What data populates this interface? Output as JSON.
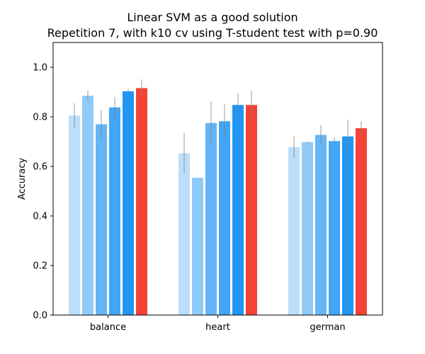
{
  "chart_data": {
    "type": "bar",
    "title": "Linear SVM as a good solution",
    "subtitle": "Repetition 7, with k10 cv using T-student test with p=0.90",
    "xlabel": "",
    "ylabel": "Accuracy",
    "ylim": [
      0,
      1.1
    ],
    "yticks": [
      "0.0",
      "0.2",
      "0.4",
      "0.6",
      "0.8",
      "1.0"
    ],
    "categories": [
      "balance",
      "heart",
      "german"
    ],
    "grid": false,
    "legend": "none",
    "colors": [
      "#bbdefb",
      "#90caf9",
      "#64b5f6",
      "#42a5f5",
      "#2196f3",
      "#f44336"
    ],
    "error_bar_color": "#7f7f7f",
    "series": [
      {
        "values": [
          0.805,
          0.653,
          0.678
        ],
        "errors": [
          0.05,
          0.082,
          0.043
        ]
      },
      {
        "values": [
          0.885,
          0.554,
          0.698
        ],
        "errors": [
          0.022,
          0.0,
          0.003
        ]
      },
      {
        "values": [
          0.77,
          0.775,
          0.727
        ],
        "errors": [
          0.058,
          0.087,
          0.04
        ]
      },
      {
        "values": [
          0.838,
          0.782,
          0.702
        ],
        "errors": [
          0.042,
          0.068,
          0.015
        ]
      },
      {
        "values": [
          0.903,
          0.848,
          0.721
        ],
        "errors": [
          0.01,
          0.048,
          0.067
        ]
      },
      {
        "values": [
          0.916,
          0.848,
          0.754
        ],
        "errors": [
          0.035,
          0.06,
          0.028
        ]
      }
    ]
  }
}
